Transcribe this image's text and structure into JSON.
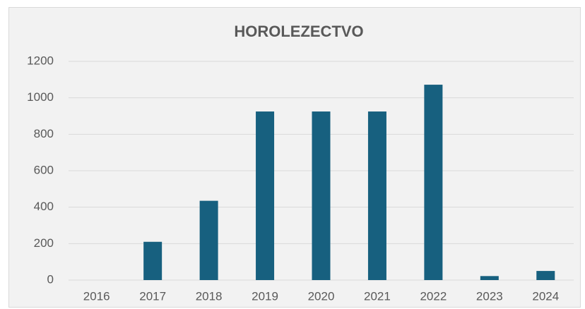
{
  "chart_data": {
    "type": "bar",
    "title": "HOROLEZECTVO",
    "categories": [
      "2016",
      "2017",
      "2018",
      "2019",
      "2020",
      "2021",
      "2022",
      "2023",
      "2024"
    ],
    "values": [
      0,
      210,
      435,
      925,
      925,
      925,
      1072,
      22,
      50
    ],
    "color": "#17607f",
    "ylim": [
      0,
      1200
    ],
    "yticks": [
      0,
      200,
      400,
      600,
      800,
      1000,
      1200
    ],
    "grid": true
  }
}
